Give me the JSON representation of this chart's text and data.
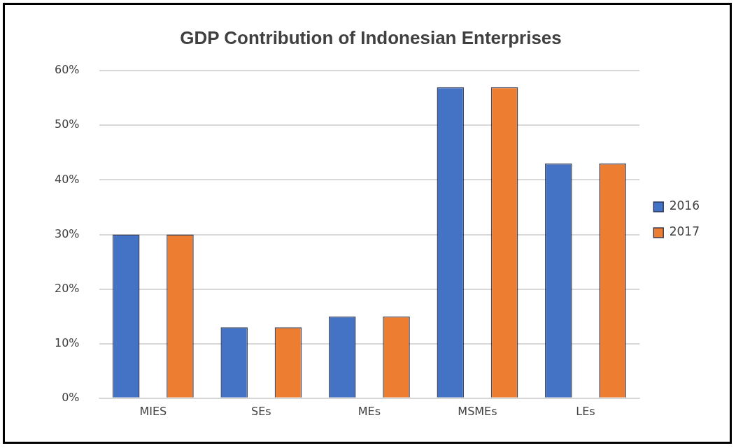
{
  "chart_data": {
    "type": "bar",
    "title": "GDP Contribution of Indonesian Enterprises",
    "categories": [
      "MIES",
      "SEs",
      "MEs",
      "MSMEs",
      "LEs"
    ],
    "series": [
      {
        "name": "2016",
        "color": "#4472c4",
        "values": [
          30,
          13,
          15,
          57,
          43
        ]
      },
      {
        "name": "2017",
        "color": "#ed7d31",
        "values": [
          30,
          13,
          15,
          57,
          43
        ]
      }
    ],
    "ylim": [
      0,
      60
    ],
    "yticks": [
      {
        "value": 0,
        "label": "0%"
      },
      {
        "value": 10,
        "label": "10%"
      },
      {
        "value": 20,
        "label": "20%"
      },
      {
        "value": 30,
        "label": "30%"
      },
      {
        "value": 40,
        "label": "40%"
      },
      {
        "value": 50,
        "label": "50%"
      },
      {
        "value": 60,
        "label": "60%"
      }
    ],
    "grid": "y",
    "legend": "right"
  }
}
